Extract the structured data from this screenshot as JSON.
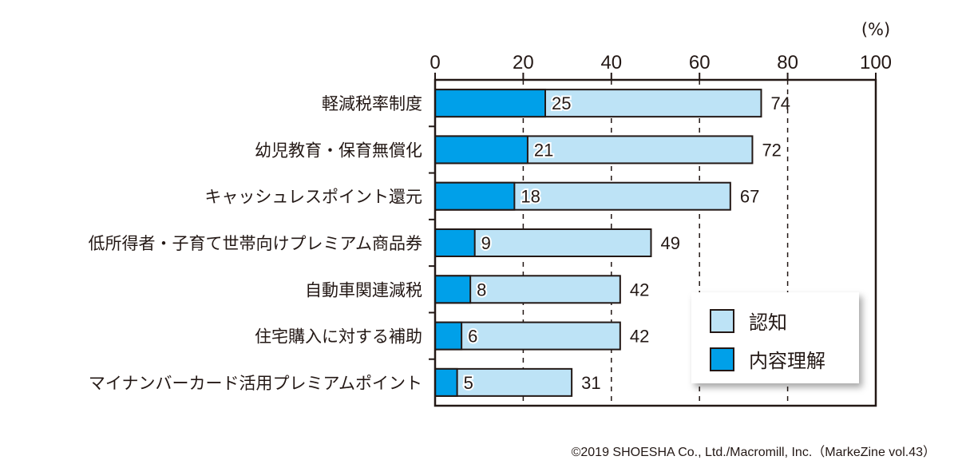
{
  "chart_data": {
    "type": "bar",
    "orientation": "horizontal",
    "unit_label": "(%)",
    "categories": [
      "軽減税率制度",
      "幼児教育・保育無償化",
      "キャッシュレスポイント還元",
      "低所得者・子育て世帯向けプレミアム商品券",
      "自動車関連減税",
      "住宅購入に対する補助",
      "マイナンバーカード活用プレミアムポイント"
    ],
    "series": [
      {
        "name": "認知",
        "color": "#bde3f6",
        "values": [
          74,
          72,
          67,
          49,
          42,
          42,
          31
        ]
      },
      {
        "name": "内容理解",
        "color": "#00a0e9",
        "values": [
          25,
          21,
          18,
          9,
          8,
          6,
          5
        ]
      }
    ],
    "xlim": [
      0,
      100
    ],
    "xticks": [
      0,
      20,
      40,
      60,
      80,
      100
    ],
    "grid": "dashed vertical",
    "legend_position": "bottom-right"
  },
  "credit": "©2019 SHOESHA Co., Ltd./Macromill, Inc.（MarkeZine vol.43）"
}
